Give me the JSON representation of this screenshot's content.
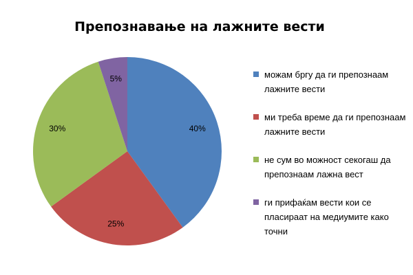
{
  "chart_data": {
    "type": "pie",
    "title": "Препознавање на лажните вести",
    "slices": [
      {
        "label": "можам бргу да ги препознаам лажните вести",
        "value": 40,
        "value_label": "40%",
        "color": "#4F81BD"
      },
      {
        "label": "ми треба време да ги препознаам лажните вести",
        "value": 25,
        "value_label": "25%",
        "color": "#C0504D"
      },
      {
        "label": "не сум во можност секогаш да препознаам лажна вест",
        "value": 30,
        "value_label": "30%",
        "color": "#9BBB59"
      },
      {
        "label": "ги прифаќам вести кои се пласираат на медиумите како точни",
        "value": 5,
        "value_label": "5%",
        "color": "#8064A2"
      }
    ],
    "legend_position": "right"
  }
}
